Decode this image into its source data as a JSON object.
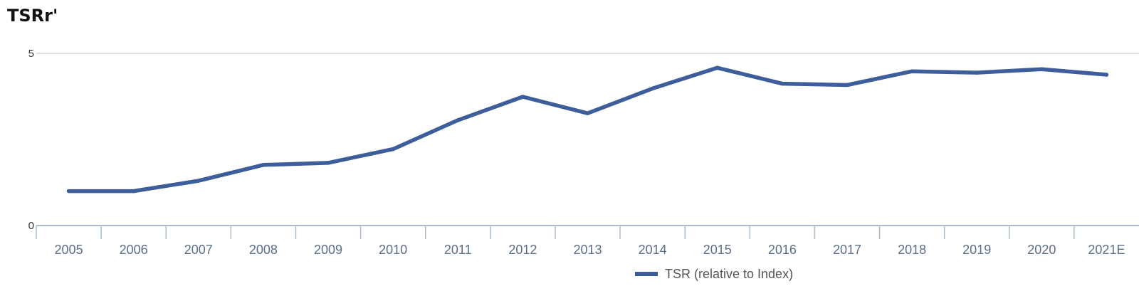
{
  "chart_data": {
    "type": "line",
    "title": "TSRr'",
    "xlabel": "",
    "ylabel": "",
    "categories": [
      "2005",
      "2006",
      "2007",
      "2008",
      "2009",
      "2010",
      "2011",
      "2012",
      "2013",
      "2014",
      "2015",
      "2016",
      "2017",
      "2018",
      "2019",
      "2020",
      "2021E"
    ],
    "series": [
      {
        "name": "TSR (relative to Index)",
        "values": [
          1.0,
          1.0,
          1.3,
          1.76,
          1.82,
          2.22,
          3.06,
          3.74,
          3.26,
          3.98,
          4.58,
          4.12,
          4.08,
          4.48,
          4.44,
          4.54,
          4.38
        ],
        "color": "#3d5e9b"
      }
    ],
    "ylim": [
      0,
      5
    ],
    "yticks": [
      0,
      5
    ],
    "grid": true,
    "legend": "bottom-center",
    "colors": {
      "axis": "#a9bccc",
      "grid": "#c0c0c0",
      "tick_label": "#5a6f8a"
    }
  }
}
